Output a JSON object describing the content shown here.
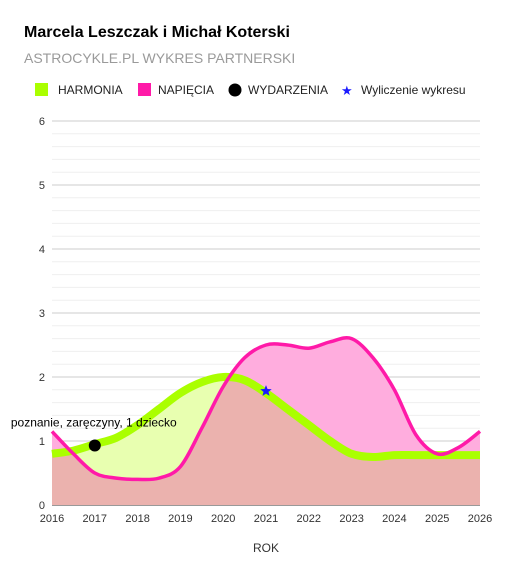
{
  "chart_data": {
    "type": "area",
    "title": "Marcela Leszczak i Michał Koterski",
    "subtitle": "ASTROCYKLE.PL WYKRES PARTNERSKI",
    "xlabel": "ROK",
    "ylabel": "",
    "x_ticks": [
      "2016",
      "2017",
      "2018",
      "2019",
      "2020",
      "2021",
      "2022",
      "2023",
      "2024",
      "2025",
      "2026"
    ],
    "y_ticks": [
      "0",
      "1",
      "2",
      "3",
      "4",
      "5",
      "6"
    ],
    "xlim": [
      2016,
      2026
    ],
    "ylim": [
      0,
      6
    ],
    "grid": true,
    "legend_position": "top",
    "series": [
      {
        "name": "HARMONIA",
        "color": "#aaff00",
        "fill": "#e8ffb0",
        "x": [
          2016,
          2016.5,
          2017,
          2017.5,
          2018,
          2018.5,
          2019,
          2019.5,
          2020,
          2020.5,
          2021,
          2021.5,
          2022,
          2022.5,
          2023,
          2023.5,
          2024,
          2024.5,
          2025,
          2025.5,
          2026
        ],
        "values": [
          0.8,
          0.85,
          0.95,
          1.05,
          1.25,
          1.5,
          1.75,
          1.92,
          2.0,
          1.95,
          1.75,
          1.5,
          1.25,
          1.0,
          0.8,
          0.75,
          0.78,
          0.78,
          0.78,
          0.78,
          0.78
        ]
      },
      {
        "name": "NAPIĘCIA",
        "color": "#ff1aa8",
        "fill": "#ffadde",
        "x": [
          2016,
          2016.5,
          2017,
          2017.5,
          2018,
          2018.5,
          2019,
          2019.5,
          2020,
          2020.5,
          2021,
          2021.5,
          2022,
          2022.5,
          2023,
          2023.5,
          2024,
          2024.5,
          2025,
          2025.5,
          2026
        ],
        "values": [
          1.15,
          0.8,
          0.5,
          0.42,
          0.4,
          0.42,
          0.6,
          1.2,
          1.85,
          2.3,
          2.5,
          2.5,
          2.45,
          2.55,
          2.6,
          2.3,
          1.8,
          1.1,
          0.8,
          0.9,
          1.15
        ]
      }
    ],
    "base_fill_color": "#ebb2ae",
    "events": {
      "name": "WYDARZENIA",
      "points": [
        {
          "x": 2017,
          "y": 0.93,
          "label": "poznanie, zaręczyny, 1 dziecko"
        }
      ]
    },
    "marker": {
      "name": "Wyliczenie wykresu",
      "x": 2021,
      "y": 1.78,
      "color": "#1a1aff"
    }
  }
}
